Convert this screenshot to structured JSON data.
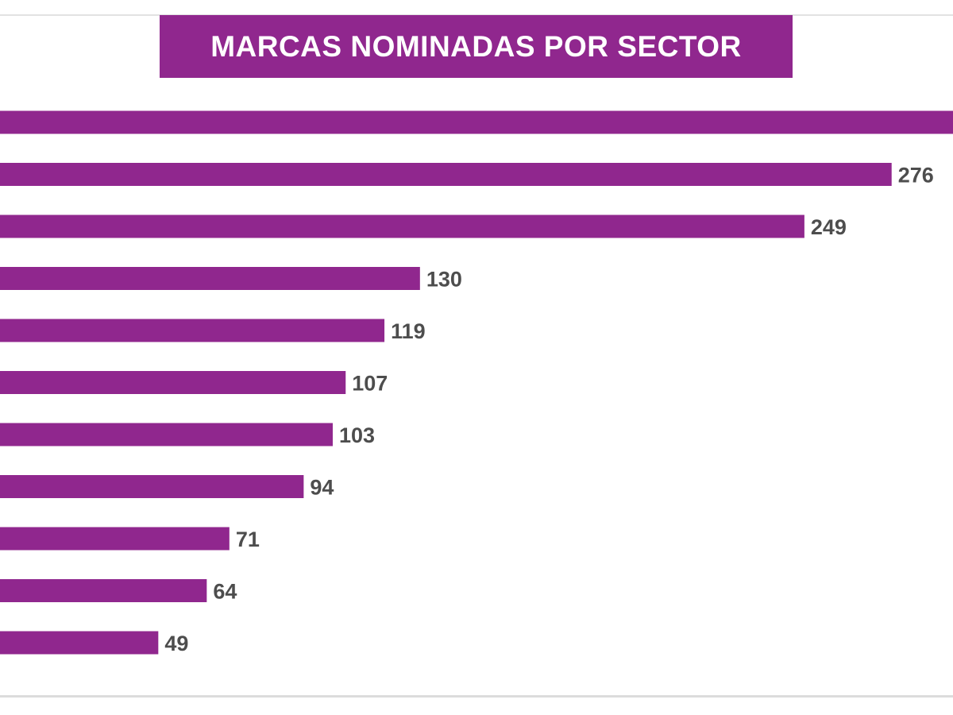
{
  "chart_data": {
    "type": "bar",
    "orientation": "horizontal",
    "title": "MARCAS NOMINADAS POR SECTOR",
    "xlabel": "",
    "ylabel": "",
    "xlim": [
      0,
      295
    ],
    "grid": false,
    "legend": "none",
    "series": [
      {
        "values": [
          295,
          276,
          249,
          130,
          119,
          107,
          103,
          94,
          71,
          64,
          49
        ],
        "labels": [
          "",
          "276",
          "249",
          "130",
          "119",
          "107",
          "103",
          "94",
          "71",
          "64",
          "49"
        ]
      }
    ]
  },
  "colors": {
    "bar": "#90278e",
    "banner": "#90278e",
    "label": "#4d4d4d",
    "rule": "#dcdcdc"
  }
}
